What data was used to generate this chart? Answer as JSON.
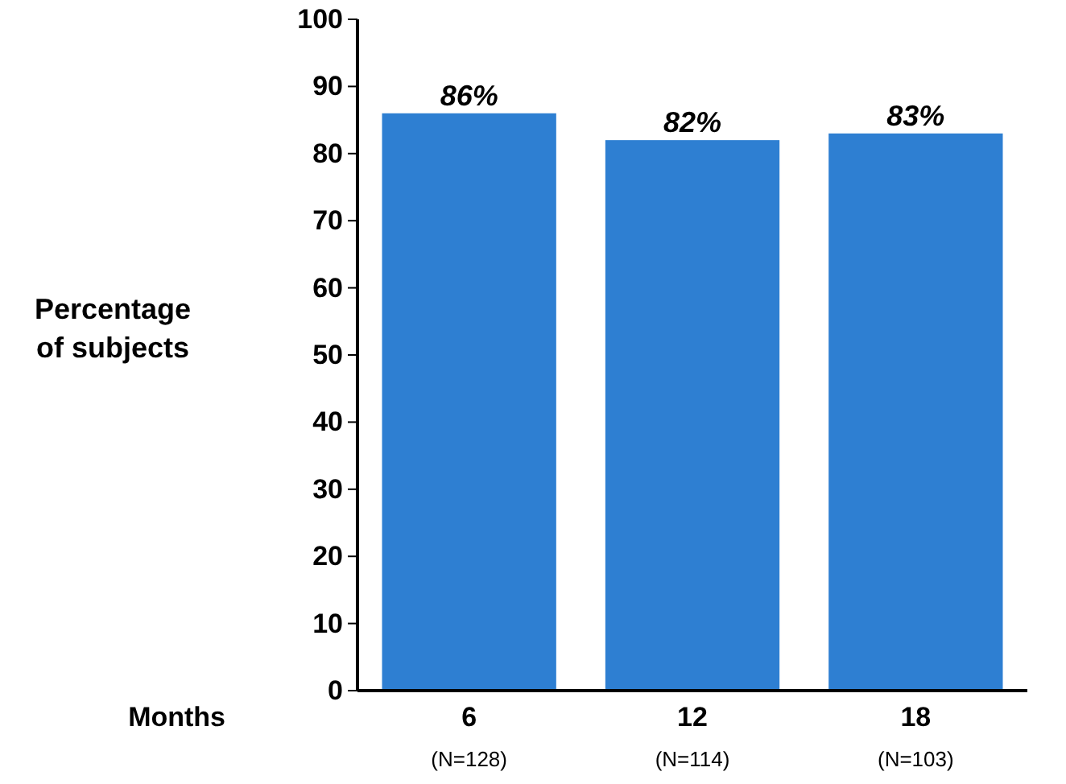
{
  "chart_data": {
    "type": "bar",
    "ylabel": "Percentage\nof subjects",
    "xlabel": "Months",
    "categories": [
      "6\n(N=128)",
      "12\n(N=114)",
      "18\n(N=103)"
    ],
    "values": [
      86,
      82,
      83
    ],
    "color": "#2e7fd2",
    "value_labels": [
      "86%",
      "82%",
      "83%"
    ],
    "ylim": [
      0,
      100
    ],
    "yticks": [
      0,
      10,
      20,
      30,
      40,
      50,
      60,
      70,
      80,
      90,
      100
    ],
    "grid": false
  }
}
